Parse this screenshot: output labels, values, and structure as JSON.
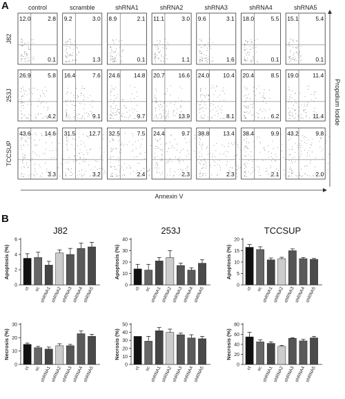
{
  "panel_a": {
    "label": "A",
    "columns": [
      "control",
      "scramble",
      "shRNA1",
      "shRNA2",
      "shRNA3",
      "shRNA4",
      "shRNA5"
    ],
    "rows": [
      {
        "name": "J82",
        "quads": [
          [
            "12.0",
            "2.8",
            "0.1"
          ],
          [
            "9.2",
            "3.0",
            "1.3"
          ],
          [
            "8.9",
            "2.1",
            "0.1"
          ],
          [
            "11.1",
            "3.0",
            "1.1"
          ],
          [
            "9.6",
            "3.1",
            "1.6"
          ],
          [
            "18.0",
            "5.5",
            "0.1"
          ],
          [
            "15.1",
            "5.4",
            "0.1"
          ]
        ]
      },
      {
        "name": "253J",
        "quads": [
          [
            "26.9",
            "5.8",
            "4.2"
          ],
          [
            "16.4",
            "7.6",
            "9.1"
          ],
          [
            "24.6",
            "14.8",
            "9.7"
          ],
          [
            "20.7",
            "16.6",
            "13.9"
          ],
          [
            "24.0",
            "10.4",
            "8.1"
          ],
          [
            "20.4",
            "8.5",
            "6.2"
          ],
          [
            "19.0",
            "11.4",
            "11.4"
          ]
        ]
      },
      {
        "name": "TCCSUP",
        "quads": [
          [
            "43.6",
            "14.6",
            "3.3"
          ],
          [
            "31.5",
            "12.7",
            "3.2"
          ],
          [
            "32.5",
            "7.5",
            "2.4"
          ],
          [
            "24.4",
            "9.7",
            "2.3"
          ],
          [
            "38.8",
            "13.4",
            "2.3"
          ],
          [
            "38.4",
            "9.9",
            "2.1"
          ],
          [
            "43.2",
            "9.8",
            "2.0"
          ]
        ]
      }
    ],
    "xlabel": "Annexin V",
    "ylabel": "Propidium Iodide"
  },
  "panel_b": {
    "label": "B",
    "colors": [
      "#111111",
      "#666666",
      "#444444",
      "#cccccc",
      "#555555",
      "#5a5a5a",
      "#4a4a4a"
    ]
  },
  "chart_data": [
    {
      "type": "bar",
      "title": "J82",
      "ylabel": "Apoptosis (%)",
      "categories": [
        "ct",
        "sc",
        "shRNA1",
        "shRNA2",
        "shRNA3",
        "shRNA4",
        "shRNA5"
      ],
      "values": [
        3.5,
        3.6,
        2.6,
        4.2,
        4.0,
        4.8,
        5.0
      ],
      "errors": [
        0.6,
        0.7,
        0.5,
        0.4,
        0.8,
        0.7,
        0.6
      ],
      "ylim": [
        0,
        6
      ],
      "yticks": [
        0,
        2,
        4,
        6
      ]
    },
    {
      "type": "bar",
      "title": "253J",
      "ylabel": "Apoptosis (%)",
      "categories": [
        "ct",
        "sc",
        "shRNA1",
        "shRNA2",
        "shRNA3",
        "shRNA4",
        "shRNA5"
      ],
      "values": [
        14,
        13,
        21,
        24,
        17,
        13,
        19
      ],
      "errors": [
        4,
        5,
        3,
        6,
        2,
        2,
        3
      ],
      "ylim": [
        0,
        40
      ],
      "yticks": [
        0,
        10,
        20,
        30,
        40
      ]
    },
    {
      "type": "bar",
      "title": "TCCSUP",
      "ylabel": "Apoptosis (%)",
      "categories": [
        "ct",
        "sc",
        "shRNA1",
        "shRNA2",
        "shRNA3",
        "shRNA4",
        "shRNA5"
      ],
      "values": [
        16.5,
        15.5,
        11,
        11.5,
        15,
        11.5,
        11.2
      ],
      "errors": [
        1.2,
        1.2,
        0.8,
        0.6,
        0.8,
        0.5,
        0.4
      ],
      "ylim": [
        0,
        20
      ],
      "yticks": [
        0,
        5,
        10,
        15,
        20
      ]
    },
    {
      "type": "bar",
      "title": "",
      "ylabel": "Necrosis (%)",
      "categories": [
        "ct",
        "sc",
        "shRNA1",
        "shRNA2",
        "shRNA3",
        "shRNA4",
        "shRNA5"
      ],
      "values": [
        15,
        12.5,
        11.5,
        14,
        14,
        23,
        21
      ],
      "errors": [
        1,
        1,
        1.5,
        1.5,
        1,
        2,
        1.5
      ],
      "ylim": [
        0,
        30
      ],
      "yticks": [
        0,
        10,
        20,
        30
      ]
    },
    {
      "type": "bar",
      "title": "",
      "ylabel": "Necrosis (%)",
      "categories": [
        "ct",
        "sc",
        "shRNA1",
        "shRNA2",
        "shRNA3",
        "shRNA4",
        "shRNA5"
      ],
      "values": [
        35,
        29,
        42,
        40,
        37,
        33,
        32
      ],
      "errors": [
        0,
        6,
        4,
        4,
        2,
        4,
        3
      ],
      "ylim": [
        0,
        50
      ],
      "yticks": [
        0,
        10,
        20,
        30,
        40,
        50
      ]
    },
    {
      "type": "bar",
      "title": "",
      "ylabel": "Necrosis (%)",
      "categories": [
        "ct",
        "sc",
        "shRNA1",
        "shRNA2",
        "shRNA3",
        "shRNA4",
        "shRNA5"
      ],
      "values": [
        55,
        45,
        42,
        36,
        52,
        47,
        53
      ],
      "errors": [
        9,
        4,
        3,
        2,
        1,
        3,
        3
      ],
      "ylim": [
        0,
        80
      ],
      "yticks": [
        0,
        20,
        40,
        60,
        80
      ]
    }
  ]
}
